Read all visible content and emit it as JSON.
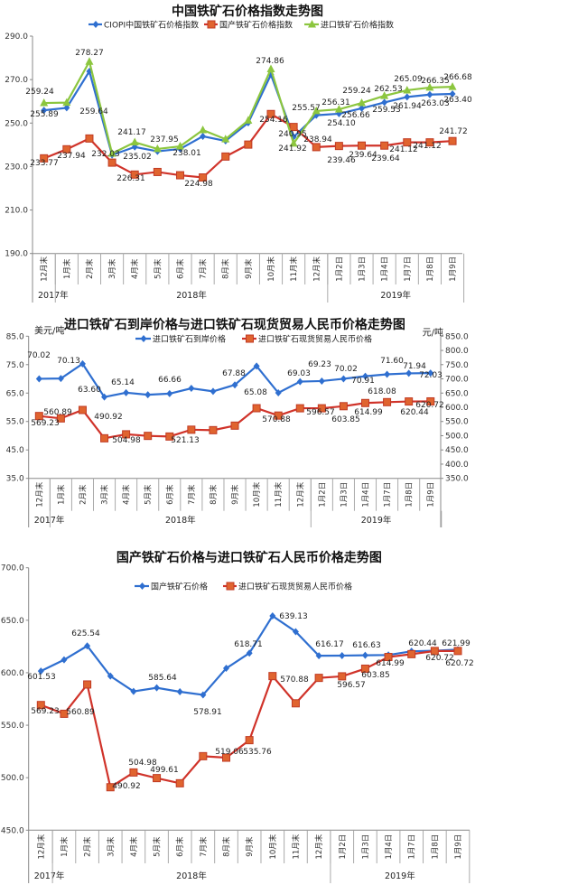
{
  "colors": {
    "blue": "#2f6fd0",
    "red": "#d0332a",
    "red_marker": "#e0642f",
    "green": "#8cc63f"
  },
  "chart_data": [
    {
      "type": "line",
      "title": "中国铁矿石价格指数走势图",
      "categories": [
        "12月末",
        "1月末",
        "2月末",
        "3月末",
        "4月末",
        "5月末",
        "6月末",
        "7月末",
        "8月末",
        "9月末",
        "10月末",
        "11月末",
        "12月末",
        "1月2日",
        "1月3日",
        "1月4日",
        "1月7日",
        "1月8日",
        "1月9日"
      ],
      "year_groups": [
        "2017年",
        "2018年",
        "2019年"
      ],
      "ylim": [
        190,
        290
      ],
      "y_ticks": [
        "190.0",
        "210.0",
        "230.0",
        "250.0",
        "270.0",
        "290.0"
      ],
      "grid": false,
      "legend": "top",
      "series": [
        {
          "name": "CIOPI中国铁矿石价格指数",
          "color": "#2f6fd0",
          "marker": "diamond",
          "values": [
            255.89,
            257.0,
            273.8,
            235.3,
            239.0,
            237.0,
            238.1,
            243.9,
            241.8,
            250.1,
            272.3,
            243.6,
            253.6,
            254.3,
            256.8,
            259.5,
            262.0,
            263.1,
            263.4
          ]
        },
        {
          "name": "国产铁矿石价格指数",
          "color": "#d0332a",
          "marker": "square",
          "values": [
            233.77,
            237.94,
            242.9,
            231.8,
            226.31,
            227.5,
            226.0,
            224.98,
            234.6,
            240.1,
            254.16,
            248.2,
            238.94,
            239.46,
            239.64,
            239.64,
            241.12,
            241.12,
            241.72
          ]
        },
        {
          "name": "进口铁矿石价格指数",
          "color": "#8cc63f",
          "marker": "triangle",
          "values": [
            259.24,
            259.4,
            278.27,
            236.0,
            241.17,
            238.1,
            239.3,
            246.8,
            242.6,
            251.2,
            274.86,
            240.6,
            255.57,
            256.31,
            259.24,
            262.53,
            265.09,
            266.35,
            266.68
          ]
        }
      ],
      "data_labels": [
        "259.24",
        "255.89",
        "278.27",
        "259.64",
        "232.03",
        "237.94",
        "233.77",
        "241.17",
        "235.02",
        "226.31",
        "237.95",
        "238.01",
        "224.98",
        "274.86",
        "254.16",
        "240.95",
        "241.92",
        "255.57",
        "238.94",
        "256.31",
        "254.10",
        "239.46",
        "259.24",
        "256.66",
        "239.64",
        "262.53",
        "259.53",
        "239.64",
        "265.09",
        "261.94",
        "241.12",
        "266.35",
        "263.03",
        "241.12",
        "266.68",
        "263.40",
        "241.72"
      ]
    },
    {
      "type": "line",
      "title": "进口铁矿石到岸价格与进口铁矿石现货贸易人民币价格走势图",
      "y_unit": "美元/吨",
      "y2_unit": "元/吨",
      "categories": [
        "12月末",
        "1月末",
        "2月末",
        "3月末",
        "4月末",
        "5月末",
        "6月末",
        "7月末",
        "8月末",
        "9月末",
        "10月末",
        "11月末",
        "12月末",
        "1月2日",
        "1月3日",
        "1月4日",
        "1月7日",
        "1月8日",
        "1月9日"
      ],
      "year_groups": [
        "2017年",
        "2018年",
        "2019年"
      ],
      "ylim": [
        35,
        85
      ],
      "y2lim": [
        350,
        850
      ],
      "y_ticks": [
        "35.0",
        "45.0",
        "55.0",
        "65.0",
        "75.0",
        "85.0"
      ],
      "y2_ticks": [
        "350.0",
        "400.0",
        "450.0",
        "500.0",
        "550.0",
        "600.0",
        "650.0",
        "700.0",
        "750.0",
        "800.0",
        "850.0"
      ],
      "grid": false,
      "legend": "top",
      "series": [
        {
          "name": "进口铁矿石到岸价格",
          "color": "#2f6fd0",
          "marker": "diamond",
          "axis": "left",
          "values": [
            70.02,
            70.13,
            75.3,
            63.6,
            65.14,
            64.4,
            64.8,
            66.66,
            65.6,
            67.88,
            74.5,
            65.08,
            69.03,
            69.23,
            70.02,
            70.91,
            71.6,
            71.94,
            72.03
          ]
        },
        {
          "name": "进口铁矿石现货贸易人民币价格",
          "color": "#d0332a",
          "marker": "square",
          "axis": "right",
          "values": [
            569.23,
            560.89,
            590.5,
            490.92,
            504.98,
            499.4,
            497.2,
            521.13,
            519.5,
            535.4,
            596.8,
            570.88,
            596.57,
            596.57,
            603.85,
            614.99,
            618.08,
            620.44,
            620.72
          ]
        }
      ],
      "data_labels": [
        "70.02",
        "70.13",
        "63.60",
        "65.14",
        "66.66",
        "67.88",
        "65.08",
        "69.03",
        "69.23",
        "70.02",
        "70.91",
        "71.60",
        "71.94",
        "72.03",
        "569.23",
        "560.89",
        "490.92",
        "504.98",
        "521.13",
        "570.88",
        "596.57",
        "603.85",
        "614.99",
        "618.08",
        "620.44",
        "620.72"
      ]
    },
    {
      "type": "line",
      "title": "国产铁矿石价格与进口铁矿石人民币价格走势图",
      "categories": [
        "12月末",
        "1月末",
        "2月末",
        "3月末",
        "4月末",
        "5月末",
        "6月末",
        "7月末",
        "8月末",
        "9月末",
        "10月末",
        "11月末",
        "12月末",
        "1月2日",
        "1月3日",
        "1月4日",
        "1月7日",
        "1月8日",
        "1月9日"
      ],
      "year_groups": [
        "2017年",
        "2018年",
        "2019年"
      ],
      "ylim": [
        450,
        700
      ],
      "y_ticks": [
        "450.0",
        "500.0",
        "550.0",
        "600.0",
        "650.0",
        "700.0"
      ],
      "grid": false,
      "legend": "top",
      "series": [
        {
          "name": "国产铁矿石价格",
          "color": "#2f6fd0",
          "marker": "diamond",
          "values": [
            601.53,
            612.3,
            625.54,
            596.8,
            582.2,
            585.64,
            581.9,
            578.91,
            604.2,
            618.71,
            654.1,
            639.13,
            616.17,
            616.3,
            616.63,
            616.9,
            620.44,
            620.9,
            621.99
          ]
        },
        {
          "name": "进口铁矿石现货贸易人民币价格",
          "color": "#d0332a",
          "marker": "square",
          "values": [
            569.23,
            560.89,
            588.8,
            490.92,
            504.98,
            499.61,
            494.7,
            520.5,
            519.06,
            535.76,
            596.8,
            570.88,
            595.1,
            596.57,
            603.85,
            614.99,
            617.7,
            620.72,
            620.72
          ]
        }
      ],
      "data_labels": [
        "601.53",
        "625.54",
        "585.64",
        "578.91",
        "618.71",
        "639.13",
        "616.17",
        "616.63",
        "620.44",
        "621.99",
        "569.23",
        "560.89",
        "490.92",
        "504.98",
        "499.61",
        "519.06",
        "535.76",
        "570.88",
        "596.57",
        "603.85",
        "614.99",
        "620.72",
        "620.72"
      ]
    }
  ]
}
